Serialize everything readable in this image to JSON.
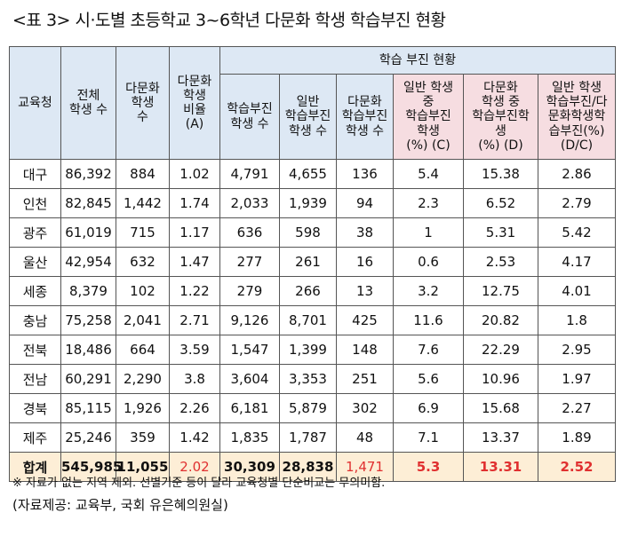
{
  "title": "<표 3> 시·도별 초등학교 3~6학년 다문화 학생 학습부진 현황",
  "table": {
    "group_header": "학습 부진 현황",
    "headers": [
      "교육청",
      "전체\n학생 수",
      "다문화\n학생\n수",
      "다문화\n학생\n비율\n(A)",
      "학습부진\n학생 수",
      "일반\n학습부진\n학생 수",
      "다문화\n학습부진\n학생 수",
      "일반 학생\n중\n학습부진\n학생\n(%) (C)",
      "다문화\n학생 중\n학습부진학\n생\n(%) (D)",
      "일반 학생\n학습부진/다\n문화학생학\n습부진(%)\n(D/C)"
    ],
    "rows": [
      [
        "대구",
        "86,392",
        "884",
        "1.02",
        "4,791",
        "4,655",
        "136",
        "5.4",
        "15.38",
        "2.86"
      ],
      [
        "인천",
        "82,845",
        "1,442",
        "1.74",
        "2,033",
        "1,939",
        "94",
        "2.3",
        "6.52",
        "2.79"
      ],
      [
        "광주",
        "61,019",
        "715",
        "1.17",
        "636",
        "598",
        "38",
        "1",
        "5.31",
        "5.42"
      ],
      [
        "울산",
        "42,954",
        "632",
        "1.47",
        "277",
        "261",
        "16",
        "0.6",
        "2.53",
        "4.17"
      ],
      [
        "세종",
        "8,379",
        "102",
        "1.22",
        "279",
        "266",
        "13",
        "3.2",
        "12.75",
        "4.01"
      ],
      [
        "충남",
        "75,258",
        "2,041",
        "2.71",
        "9,126",
        "8,701",
        "425",
        "11.6",
        "20.82",
        "1.8"
      ],
      [
        "전북",
        "18,486",
        "664",
        "3.59",
        "1,547",
        "1,399",
        "148",
        "7.6",
        "22.29",
        "2.95"
      ],
      [
        "전남",
        "60,291",
        "2,290",
        "3.8",
        "3,604",
        "3,353",
        "251",
        "5.6",
        "10.96",
        "1.97"
      ],
      [
        "경북",
        "85,115",
        "1,926",
        "2.26",
        "6,181",
        "5,879",
        "302",
        "6.9",
        "15.68",
        "2.27"
      ],
      [
        "제주",
        "25,246",
        "359",
        "1.42",
        "1,835",
        "1,787",
        "48",
        "7.1",
        "13.37",
        "1.89"
      ]
    ],
    "total": [
      "합계",
      "545,985",
      "11,055",
      "2.02",
      "30,309",
      "28,838",
      "1,471",
      "5.3",
      "13.31",
      "2.52"
    ]
  },
  "note": "※ 자료가 없는 지역 제외. 선별기준 등이 달라 교육청별 단순비교는 무의미함.",
  "source": "(자료제공: 교육부, 국회 유은혜의원실)",
  "colors": {
    "header_blue": "#dde8f4",
    "header_pink": "#f6dde1",
    "total_bg": "#fdeed6",
    "highlight_red": "#e03030"
  }
}
